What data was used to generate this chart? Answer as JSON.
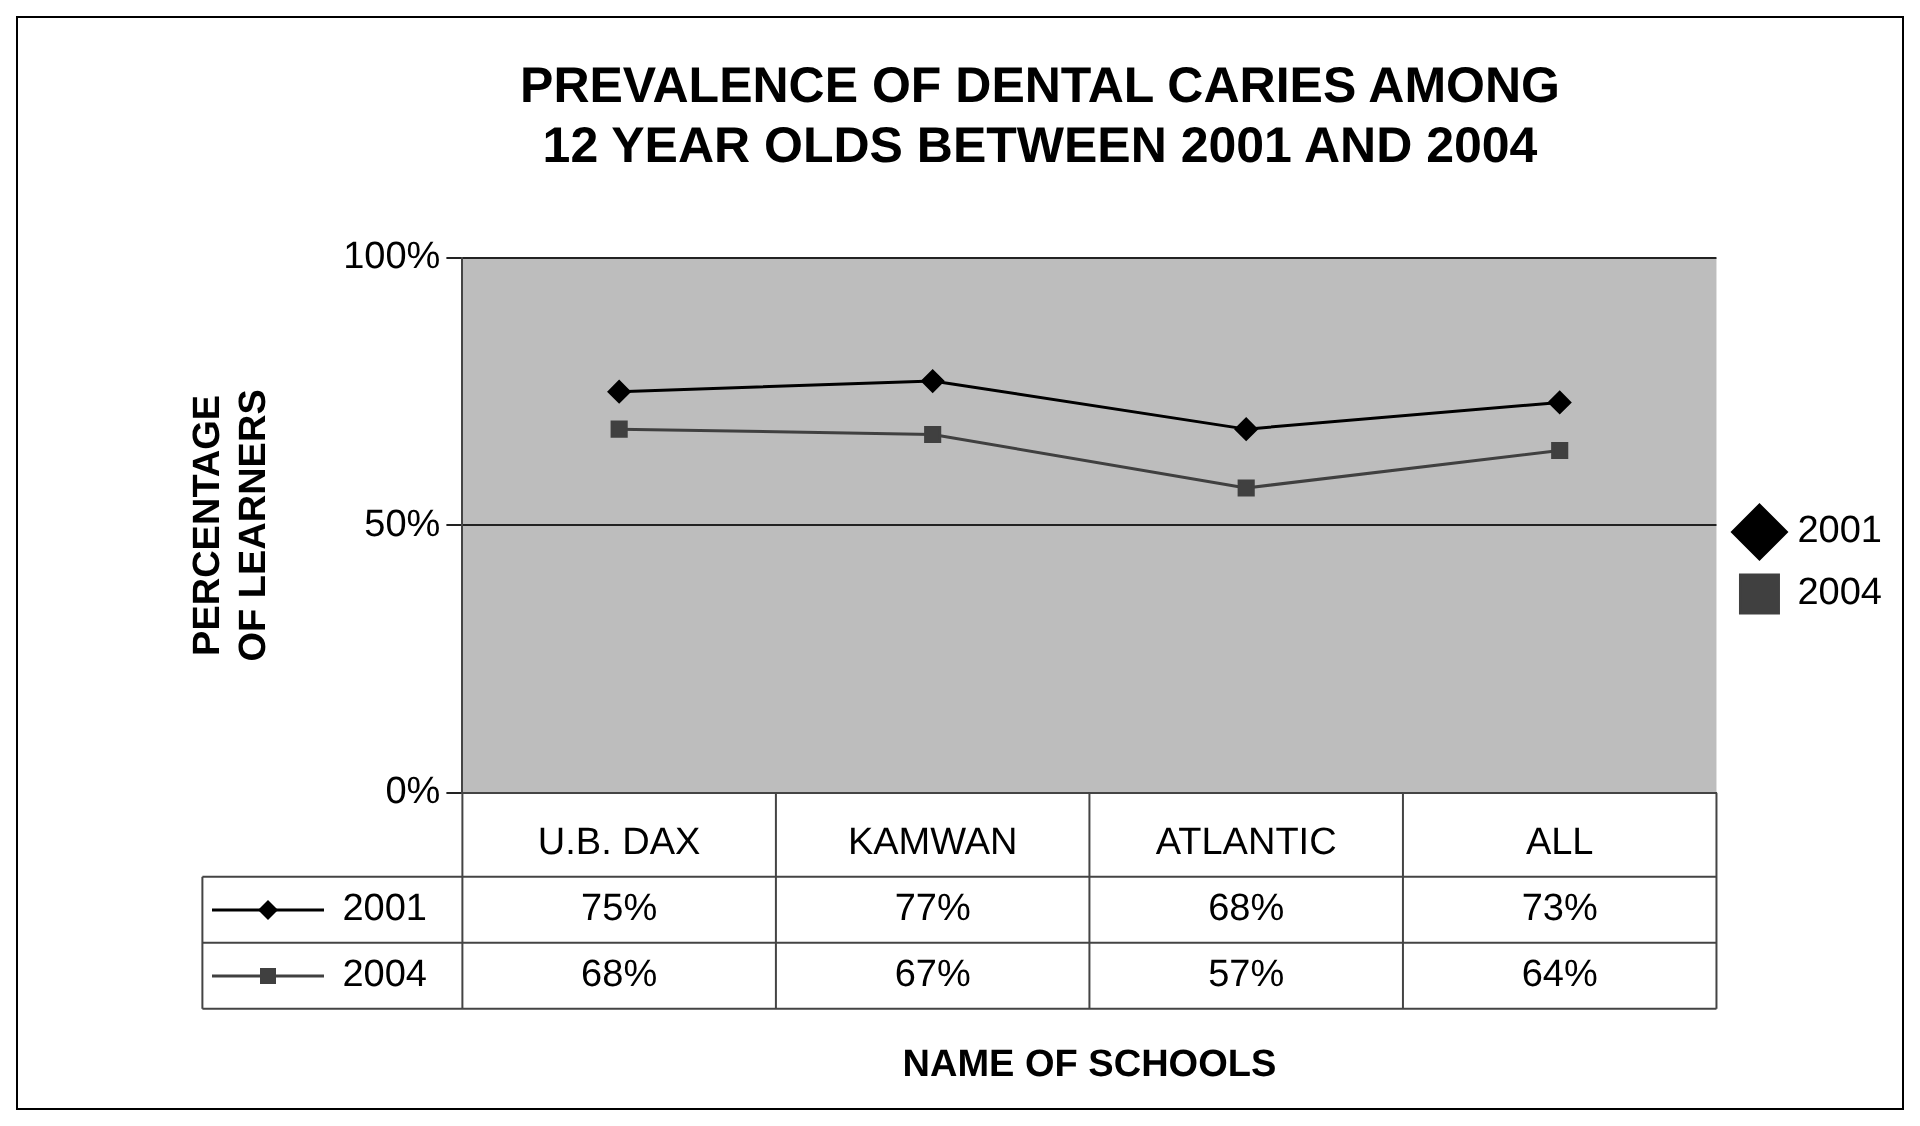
{
  "chart_data": {
    "type": "line",
    "title": "PREVALENCE OF DENTAL CARIES AMONG 12 YEAR OLDS BETWEEN 2001 AND 2004",
    "xlabel": "NAME OF SCHOOLS",
    "ylabel": "PERCENTAGE OF LEARNERS",
    "categories": [
      "U.B. DAX",
      "KAMWAN",
      "ATLANTIC",
      "ALL"
    ],
    "series": [
      {
        "name": "2001",
        "color": "#000000",
        "marker": "diamond",
        "values": [
          75,
          77,
          68,
          73
        ],
        "value_labels": [
          "75%",
          "77%",
          "68%",
          "73%"
        ]
      },
      {
        "name": "2004",
        "color": "#404040",
        "marker": "square",
        "values": [
          68,
          67,
          57,
          64
        ],
        "value_labels": [
          "68%",
          "67%",
          "57%",
          "64%"
        ]
      }
    ],
    "ylim": [
      0,
      100
    ],
    "yticks": [
      {
        "value": 0,
        "label": "0%"
      },
      {
        "value": 50,
        "label": "50%"
      },
      {
        "value": 100,
        "label": "100%"
      }
    ],
    "grid": "y",
    "legend": "right",
    "line_style": "solid"
  }
}
